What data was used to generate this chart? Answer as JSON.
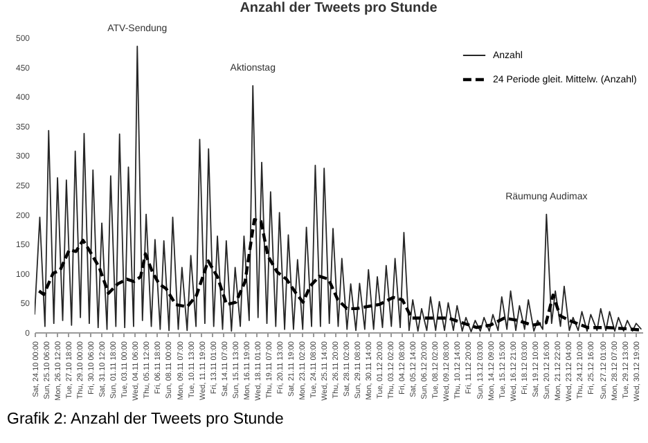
{
  "chart_data": {
    "type": "line",
    "title": "Anzahl der Tweets pro Stunde",
    "annotations": [
      {
        "text": "ATV-Sendung",
        "x": "--11-04T14:00",
        "y": 485
      },
      {
        "text": "Aktionstag",
        "x": "--11-17T15:00",
        "y": 418
      },
      {
        "text": "Räumung Audimax",
        "x": "--12-20T18:00",
        "y": 200
      },
      "Grafik 2: Anzahl der Tweets pro Stunde"
    ],
    "xlim": [
      "--10-24T00:00",
      "--12-31T14:00"
    ],
    "xticks": [
      {
        "value": "--10-24T00:00",
        "label": "Sat, 24.10 00:00"
      },
      {
        "value": "--10-25T06:00",
        "label": "Sun, 25.10 06:00"
      },
      {
        "value": "--10-26T12:00",
        "label": "Mon, 26.10 12:00"
      },
      {
        "value": "--10-27T18:00",
        "label": "Tue, 27.10 18:00"
      },
      {
        "value": "--10-29T00:00",
        "label": "Thu, 29.10 00:00"
      },
      {
        "value": "--10-30T06:00",
        "label": "Fri, 30.10 06:00"
      },
      {
        "value": "--10-31T12:00",
        "label": "Sat, 31.10 12:00"
      },
      {
        "value": "--11-01T18:00",
        "label": "Sun, 01.11 18:00"
      },
      {
        "value": "--11-03T00:00",
        "label": "Tue, 03.11 00:00"
      },
      {
        "value": "--11-04T06:00",
        "label": "Wed, 04.11 06:00"
      },
      {
        "value": "--11-05T12:00",
        "label": "Thu, 05.11 12:00"
      },
      {
        "value": "--11-06T18:00",
        "label": "Fri, 06.11 18:00"
      },
      {
        "value": "--11-08T00:00",
        "label": "Sun, 08.11 00:00"
      },
      {
        "value": "--11-09T07:00",
        "label": "Mon, 09.11 07:00"
      },
      {
        "value": "--11-10T13:00",
        "label": "Tue, 10.11 13:00"
      },
      {
        "value": "--11-11T19:00",
        "label": "Wed, 11.11 19:00"
      },
      {
        "value": "--11-13T01:00",
        "label": "Fri, 13.11 01:00"
      },
      {
        "value": "--11-14T07:00",
        "label": "Sat, 14.11 07:00"
      },
      {
        "value": "--11-15T13:00",
        "label": "Sun, 15.11 13:00"
      },
      {
        "value": "--11-16T19:00",
        "label": "Mon, 16.11 19:00"
      },
      {
        "value": "--11-18T01:00",
        "label": "Wed, 18.11 01:00"
      },
      {
        "value": "--11-19T07:00",
        "label": "Thu, 19.11 07:00"
      },
      {
        "value": "--11-20T13:00",
        "label": "Fri, 20.11 13:00"
      },
      {
        "value": "--11-21T19:00",
        "label": "Sat, 21.11 19:00"
      },
      {
        "value": "--11-23T02:00",
        "label": "Mon, 23.11 02:00"
      },
      {
        "value": "--11-24T08:00",
        "label": "Tue, 24.11 08:00"
      },
      {
        "value": "--11-25T14:00",
        "label": "Wed, 25.11 14:00"
      },
      {
        "value": "--11-26T20:00",
        "label": "Thu, 26.11 20:00"
      },
      {
        "value": "--11-28T02:00",
        "label": "Sat, 28.11 02:00"
      },
      {
        "value": "--11-29T08:00",
        "label": "Sun, 29.11 08:00"
      },
      {
        "value": "--11-30T14:00",
        "label": "Mon, 30.11 14:00"
      },
      {
        "value": "--12-01T20:00",
        "label": "Tue, 01.12 20:00"
      },
      {
        "value": "--12-03T02:00",
        "label": "Thu, 03.12 02:00"
      },
      {
        "value": "--12-04T08:00",
        "label": "Fri, 04.12 08:00"
      },
      {
        "value": "--12-05T14:00",
        "label": "Sat, 05.12 14:00"
      },
      {
        "value": "--12-06T20:00",
        "label": "Sun, 06.12 20:00"
      },
      {
        "value": "--12-08T02:00",
        "label": "Tue, 08.12 02:00"
      },
      {
        "value": "--12-09T08:00",
        "label": "Wed, 09.12 08:00"
      },
      {
        "value": "--12-10T14:00",
        "label": "Thu, 10.12 14:00"
      },
      {
        "value": "--12-11T20:00",
        "label": "Fri, 11.12 20:00"
      },
      {
        "value": "--12-13T03:00",
        "label": "Sun, 13.12 03:00"
      },
      {
        "value": "--12-14T09:00",
        "label": "Mon, 14.12 09:00"
      },
      {
        "value": "--12-15T15:00",
        "label": "Tue, 15.12 15:00"
      },
      {
        "value": "--12-16T21:00",
        "label": "Wed, 16.12 21:00"
      },
      {
        "value": "--12-18T03:00",
        "label": "Fri, 18.12 03:00"
      },
      {
        "value": "--12-19T10:00",
        "label": "Sat, 19.12 10:00"
      },
      {
        "value": "--12-20T16:00",
        "label": "Sun, 20.12 16:00"
      },
      {
        "value": "--12-21T22:00",
        "label": "Mon, 21.12 22:00"
      },
      {
        "value": "--12-23T04:00",
        "label": "Wed, 23.12 04:00"
      },
      {
        "value": "--12-24T10:00",
        "label": "Thu, 24.12 10:00"
      },
      {
        "value": "--12-25T16:00",
        "label": "Fri, 25.12 16:00"
      },
      {
        "value": "--12-27T01:00",
        "label": "Sun, 27.12 01:00"
      },
      {
        "value": "--12-28T07:00",
        "label": "Mon, 28.12 07:00"
      },
      {
        "value": "--12-29T13:00",
        "label": "Tue, 29.12 13:00"
      },
      {
        "value": "--12-30T19:00",
        "label": "Wed, 30.12 19:00"
      }
    ],
    "ylim": [
      0,
      500
    ],
    "yticks": [
      0,
      50,
      100,
      150,
      200,
      250,
      300,
      350,
      400,
      450,
      500
    ],
    "legend": "top right",
    "series": [
      {
        "name": "Anzahl",
        "color": "#262626",
        "line_style": "solid",
        "x": [
          "--10-24T00:00",
          "--10-24T14:00",
          "--10-25T04:00",
          "--10-25T14:00",
          "--10-26T04:00",
          "--10-26T14:00",
          "--10-27T04:00",
          "--10-27T14:00",
          "--10-28T04:00",
          "--10-28T14:00",
          "--10-29T04:00",
          "--10-29T14:00",
          "--10-30T04:00",
          "--10-30T14:00",
          "--10-31T04:00",
          "--10-31T14:00",
          "--11-01T04:00",
          "--11-01T14:00",
          "--11-02T04:00",
          "--11-02T14:00",
          "--11-03T04:00",
          "--11-03T14:00",
          "--11-04T04:00",
          "--11-04T14:00",
          "--11-05T04:00",
          "--11-05T14:00",
          "--11-06T04:00",
          "--11-06T14:00",
          "--11-07T04:00",
          "--11-07T14:00",
          "--11-08T04:00",
          "--11-08T14:00",
          "--11-09T05:00",
          "--11-09T15:00",
          "--11-10T05:00",
          "--11-10T15:00",
          "--11-11T05:00",
          "--11-11T15:00",
          "--11-12T05:00",
          "--11-12T15:00",
          "--11-13T05:00",
          "--11-13T15:00",
          "--11-14T05:00",
          "--11-14T15:00",
          "--11-15T05:00",
          "--11-15T15:00",
          "--11-16T05:00",
          "--11-16T15:00",
          "--11-17T05:00",
          "--11-17T15:00",
          "--11-18T05:00",
          "--11-18T15:00",
          "--11-19T05:00",
          "--11-19T15:00",
          "--11-20T05:00",
          "--11-20T15:00",
          "--11-21T05:00",
          "--11-21T15:00",
          "--11-22T05:00",
          "--11-22T16:00",
          "--11-23T06:00",
          "--11-23T16:00",
          "--11-24T06:00",
          "--11-24T16:00",
          "--11-25T06:00",
          "--11-25T16:00",
          "--11-26T06:00",
          "--11-26T16:00",
          "--11-27T06:00",
          "--11-27T16:00",
          "--11-28T06:00",
          "--11-28T16:00",
          "--11-29T06:00",
          "--11-29T16:00",
          "--11-30T06:00",
          "--11-30T16:00",
          "--12-01T06:00",
          "--12-01T16:00",
          "--12-02T06:00",
          "--12-02T16:00",
          "--12-03T06:00",
          "--12-03T16:00",
          "--12-04T06:00",
          "--12-04T16:00",
          "--12-05T06:00",
          "--12-05T16:00",
          "--12-06T06:00",
          "--12-06T16:00",
          "--12-07T06:00",
          "--12-07T16:00",
          "--12-08T06:00",
          "--12-08T16:00",
          "--12-09T06:00",
          "--12-09T16:00",
          "--12-10T06:00",
          "--12-10T16:00",
          "--12-11T06:00",
          "--12-11T16:00",
          "--12-12T06:00",
          "--12-12T17:00",
          "--12-13T07:00",
          "--12-13T17:00",
          "--12-14T07:00",
          "--12-14T17:00",
          "--12-15T07:00",
          "--12-15T17:00",
          "--12-16T07:00",
          "--12-16T17:00",
          "--12-17T07:00",
          "--12-17T17:00",
          "--12-18T07:00",
          "--12-18T17:00",
          "--12-19T08:00",
          "--12-19T18:00",
          "--12-20T08:00",
          "--12-20T18:00",
          "--12-21T08:00",
          "--12-21T18:00",
          "--12-22T08:00",
          "--12-22T18:00",
          "--12-23T08:00",
          "--12-23T18:00",
          "--12-24T08:00",
          "--12-24T18:00",
          "--12-25T08:00",
          "--12-25T18:00",
          "--12-26T11:00",
          "--12-26T21:00",
          "--12-27T11:00",
          "--12-27T21:00",
          "--12-28T11:00",
          "--12-28T21:00",
          "--12-29T11:00",
          "--12-29T21:00",
          "--12-30T11:00",
          "--12-30T21:00",
          "--12-31T11:00"
        ],
        "values": [
          30,
          195,
          10,
          342,
          15,
          262,
          20,
          258,
          12,
          307,
          25,
          337,
          15,
          275,
          8,
          185,
          5,
          265,
          10,
          336,
          8,
          280,
          10,
          485,
          20,
          200,
          10,
          157,
          5,
          155,
          3,
          195,
          5,
          110,
          3,
          130,
          10,
          327,
          15,
          311,
          10,
          163,
          5,
          155,
          2,
          110,
          10,
          163,
          20,
          418,
          25,
          288,
          15,
          238,
          10,
          203,
          5,
          165,
          5,
          123,
          5,
          178,
          10,
          283,
          10,
          278,
          15,
          176,
          10,
          125,
          5,
          82,
          3,
          83,
          5,
          106,
          5,
          94,
          8,
          113,
          10,
          125,
          8,
          169,
          3,
          55,
          2,
          40,
          3,
          60,
          3,
          52,
          3,
          50,
          3,
          45,
          2,
          25,
          1,
          20,
          2,
          25,
          2,
          30,
          3,
          60,
          5,
          70,
          3,
          45,
          5,
          55,
          2,
          20,
          5,
          200,
          15,
          70,
          10,
          78,
          3,
          25,
          3,
          35,
          2,
          30,
          3,
          40,
          3,
          35,
          2,
          25,
          2,
          20,
          2,
          15,
          5
        ]
      },
      {
        "name": "24 Periode gleit. Mittelw. (Anzahl)",
        "color": "#000000",
        "line_style": "dashed",
        "x": [
          "--10-24T12:00",
          "--10-25T01:00",
          "--10-26T02:00",
          "--10-26T21:00",
          "--10-27T22:00",
          "--10-28T16:00",
          "--10-29T11:00",
          "--10-30T06:00",
          "--10-31T07:00",
          "--11-01T08:00",
          "--11-02T09:00",
          "--11-03T10:00",
          "--11-04T05:00",
          "--11-04T23:00",
          "--11-05T12:00",
          "--11-06T07:00",
          "--11-07T01:00",
          "--11-07T20:00",
          "--11-08T22:00",
          "--11-10T05:00",
          "--11-11T06:00",
          "--11-12T14:00",
          "--11-13T15:00",
          "--11-14T16:00",
          "--11-15T17:00",
          "--11-16T18:00",
          "--11-17T19:00",
          "--11-18T13:00",
          "--11-19T08:00",
          "--11-20T09:00",
          "--11-21T10:00",
          "--11-22T12:00",
          "--11-23T07:00",
          "--11-24T02:00",
          "--11-25T03:00",
          "--11-26T04:00",
          "--11-27T05:00",
          "--11-28T06:00",
          "--11-29T07:00",
          "--11-30T08:00",
          "--12-01T21:00",
          "--12-03T11:00",
          "--12-04T12:00",
          "--12-05T13:00",
          "--12-07T15:00",
          "--12-09T17:00",
          "--12-11T06:00",
          "--12-12T21:00",
          "--12-14T10:00",
          "--12-16T00:00",
          "--12-17T13:00",
          "--12-19T04:00",
          "--12-20T17:00",
          "--12-21T12:00",
          "--12-22T07:00",
          "--12-23T08:00",
          "--12-25T10:00",
          "--12-27T15:00",
          "--12-29T17:00",
          "--12-31T06:00"
        ],
        "values": [
          70,
          64,
          100,
          105,
          140,
          137,
          156,
          137,
          110,
          66,
          82,
          90,
          86,
          94,
          133,
          102,
          82,
          74,
          47,
          43,
          62,
          121,
          94,
          47,
          51,
          86,
          191,
          188,
          129,
          102,
          90,
          66,
          51,
          78,
          95,
          90,
          55,
          40,
          40,
          43,
          47,
          59,
          55,
          24,
          24,
          24,
          16,
          8,
          12,
          24,
          20,
          12,
          16,
          63,
          28,
          20,
          8,
          8,
          6,
          4
        ]
      }
    ]
  }
}
